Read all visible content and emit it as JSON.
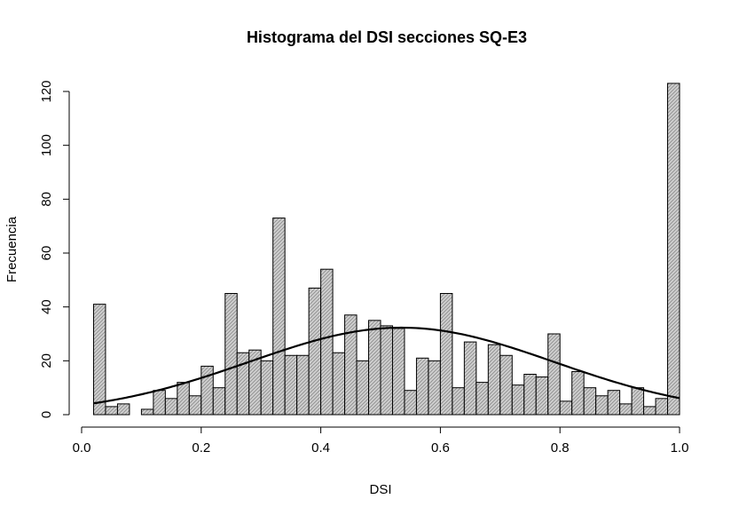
{
  "chart_data": {
    "type": "bar",
    "title": "Histograma del DSI secciones SQ-E3",
    "xlabel": "DSI",
    "ylabel": "Frecuencia",
    "xlim": [
      0.0,
      1.0
    ],
    "ylim": [
      0,
      120
    ],
    "x_ticks": [
      "0.0",
      "0.2",
      "0.4",
      "0.6",
      "0.8",
      "1.0"
    ],
    "y_ticks": [
      "0",
      "20",
      "40",
      "60",
      "80",
      "100",
      "120"
    ],
    "bin_width": 0.02,
    "bins_start": [
      0.02,
      0.04,
      0.06,
      0.08,
      0.1,
      0.12,
      0.14,
      0.16,
      0.18,
      0.2,
      0.22,
      0.24,
      0.26,
      0.28,
      0.3,
      0.32,
      0.34,
      0.36,
      0.38,
      0.4,
      0.42,
      0.44,
      0.46,
      0.48,
      0.5,
      0.52,
      0.54,
      0.56,
      0.58,
      0.6,
      0.62,
      0.64,
      0.66,
      0.68,
      0.7,
      0.72,
      0.74,
      0.76,
      0.78,
      0.8,
      0.82,
      0.84,
      0.86,
      0.88,
      0.9,
      0.92,
      0.94,
      0.96,
      0.98
    ],
    "values": [
      41,
      3,
      4,
      0,
      2,
      9,
      6,
      12,
      7,
      18,
      10,
      45,
      23,
      24,
      20,
      73,
      22,
      22,
      47,
      54,
      23,
      37,
      20,
      35,
      33,
      32,
      9,
      21,
      20,
      45,
      10,
      27,
      12,
      26,
      22,
      11,
      15,
      14,
      30,
      5,
      16,
      10,
      7,
      9,
      4,
      10,
      3,
      6,
      123
    ],
    "fill": "#cfcfcf",
    "hatch": "diagonal",
    "curve": {
      "type": "normal_density",
      "mean": 0.535,
      "sd": 0.255,
      "peak": 32.3,
      "x_range": [
        0.02,
        1.0
      ],
      "color": "#000000"
    }
  }
}
